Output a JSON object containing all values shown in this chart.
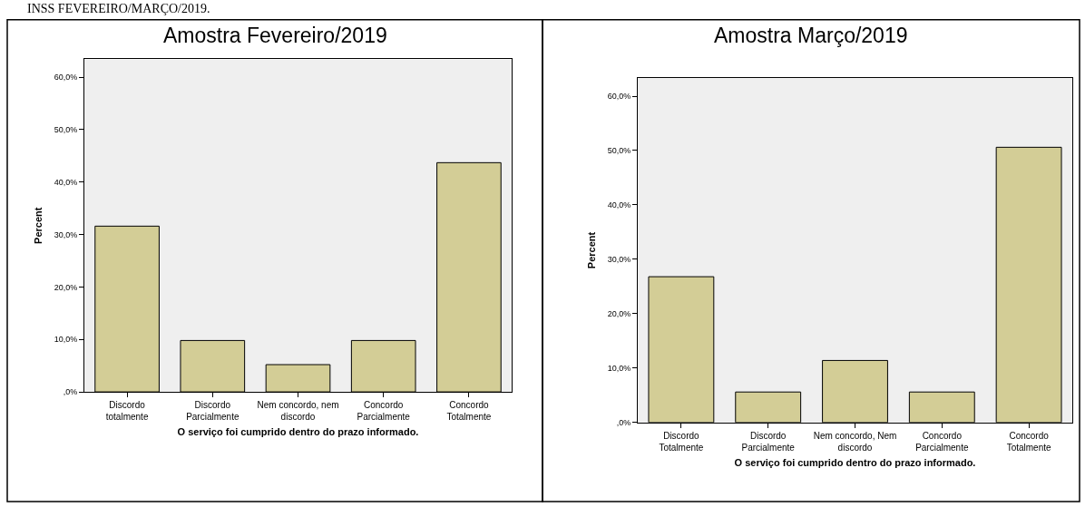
{
  "chart_data": [
    {
      "type": "bar",
      "title": "Amostra Fevereiro/2019",
      "xlabel": "O serviço foi cumprido dentro do prazo informado.",
      "ylabel": "Percent",
      "annotations": [
        "INSS FEVEREIRO/MARÇO/2019."
      ],
      "categories": [
        "Discordo totalmente",
        "Discordo Parcialmente",
        "Nem concordo, nem discordo",
        "Concordo Parcialmente",
        "Concordo Totalmente"
      ],
      "values": [
        31.6,
        9.8,
        5.2,
        9.8,
        43.7
      ],
      "color": "#d3cd96",
      "ylim": [
        0,
        63.4
      ],
      "yticks": [
        {
          "value": 0,
          "label": ",0%"
        },
        {
          "value": 10,
          "label": "10,0%"
        },
        {
          "value": 20,
          "label": "20,0%"
        },
        {
          "value": 30,
          "label": "30,0%"
        },
        {
          "value": 40,
          "label": "40,0%"
        },
        {
          "value": 50,
          "label": "50,0%"
        },
        {
          "value": 60,
          "label": "60,0%"
        }
      ],
      "grid": false
    },
    {
      "type": "bar",
      "title": "Amostra Março/2019",
      "xlabel": "O serviço foi cumprido dentro do prazo informado.",
      "ylabel": "Percent",
      "categories": [
        "Discordo Totalmente",
        "Discordo Parcialmente",
        "Nem concordo, Nem discordo",
        "Concordo Parcialmente",
        "Concordo Totalmente"
      ],
      "values": [
        26.8,
        5.6,
        11.4,
        5.6,
        50.6
      ],
      "color": "#d3cd96",
      "ylim": [
        0,
        63.3
      ],
      "yticks": [
        {
          "value": 0,
          "label": ",0%"
        },
        {
          "value": 10,
          "label": "10,0%"
        },
        {
          "value": 20,
          "label": "20,0%"
        },
        {
          "value": 30,
          "label": "30,0%"
        },
        {
          "value": 40,
          "label": "40,0%"
        },
        {
          "value": 50,
          "label": "50,0%"
        },
        {
          "value": 60,
          "label": "60,0%"
        }
      ],
      "grid": false
    }
  ]
}
